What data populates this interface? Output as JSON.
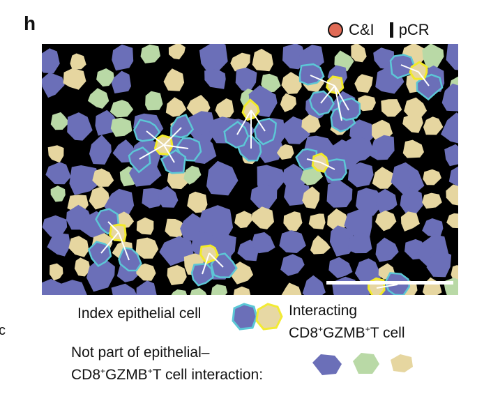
{
  "panel_label": "h",
  "legend_top": {
    "ci_label": "C&I",
    "pcr_label": "pCR"
  },
  "legend_bottom": {
    "index_epithelial": "Index epithelial cell",
    "interacting_line1": "Interacting",
    "interacting_line2_parts": [
      "CD8",
      "+",
      "GZMB",
      "+",
      "T cell"
    ],
    "not_part_line1": "Not part of epithelial–",
    "not_part_line2_parts": [
      "CD8",
      "+",
      "GZMB",
      "+",
      "T cell interaction:"
    ]
  },
  "edge_stub": "c",
  "colors": {
    "epithelial": "#6b6fb8",
    "tcell": "#e6d6a0",
    "green": "#b9d9a6",
    "index_outline": "#5cc7d6",
    "interacting_outline": "#f2ea2a",
    "background": "#000000",
    "ci_dot": "#e06a55"
  }
}
